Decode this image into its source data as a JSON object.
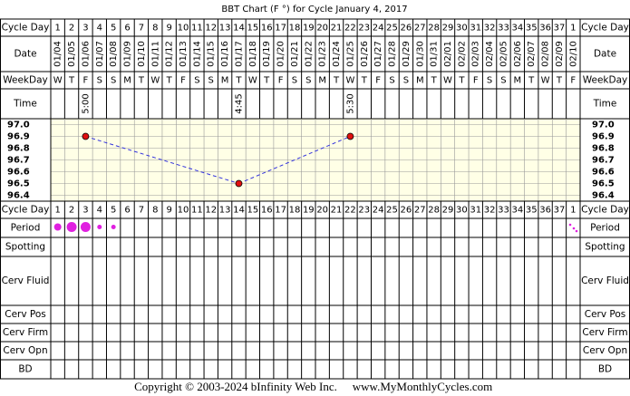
{
  "chart_data": {
    "type": "line",
    "title": "BBT Chart (F °) for Cycle January 4, 2017",
    "row_labels": {
      "cycle_day": "Cycle Day",
      "date": "Date",
      "weekday": "WeekDay",
      "time": "Time",
      "period": "Period",
      "spotting": "Spotting",
      "cerv_fluid": "Cerv Fluid",
      "cerv_pos": "Cerv Pos",
      "cerv_firm": "Cerv Firm",
      "cerv_opn": "Cerv Opn",
      "bd": "BD"
    },
    "cycle_days": [
      1,
      2,
      3,
      4,
      5,
      6,
      7,
      8,
      9,
      10,
      11,
      12,
      13,
      14,
      15,
      16,
      17,
      18,
      19,
      20,
      21,
      22,
      23,
      24,
      25,
      26,
      27,
      28,
      29,
      30,
      31,
      32,
      33,
      34,
      35,
      36,
      37,
      1
    ],
    "categories": [
      "01/04",
      "01/05",
      "01/06",
      "01/07",
      "01/08",
      "01/09",
      "01/10",
      "01/11",
      "01/12",
      "01/13",
      "01/14",
      "01/15",
      "01/16",
      "01/17",
      "01/18",
      "01/19",
      "01/20",
      "01/21",
      "01/22",
      "01/23",
      "01/24",
      "01/25",
      "01/26",
      "01/27",
      "01/28",
      "01/29",
      "01/30",
      "01/31",
      "02/01",
      "02/02",
      "02/03",
      "02/04",
      "02/05",
      "02/06",
      "02/07",
      "02/08",
      "02/09",
      "02/10"
    ],
    "weekdays": [
      "W",
      "T",
      "F",
      "S",
      "S",
      "M",
      "T",
      "W",
      "T",
      "F",
      "S",
      "S",
      "M",
      "T",
      "W",
      "T",
      "F",
      "S",
      "S",
      "M",
      "T",
      "W",
      "T",
      "F",
      "S",
      "S",
      "M",
      "T",
      "W",
      "T",
      "F",
      "S",
      "S",
      "M",
      "T",
      "W",
      "T",
      "F"
    ],
    "times": [
      null,
      null,
      "5:00",
      null,
      null,
      null,
      null,
      null,
      null,
      null,
      null,
      null,
      null,
      "4:45",
      null,
      null,
      null,
      null,
      null,
      null,
      null,
      "5:30",
      null,
      null,
      null,
      null,
      null,
      null,
      null,
      null,
      null,
      null,
      null,
      null,
      null,
      null,
      null,
      null
    ],
    "values": [
      null,
      null,
      96.9,
      null,
      null,
      null,
      null,
      null,
      null,
      null,
      null,
      null,
      null,
      96.5,
      null,
      null,
      null,
      null,
      null,
      null,
      null,
      96.9,
      null,
      null,
      null,
      null,
      null,
      null,
      null,
      null,
      null,
      null,
      null,
      null,
      null,
      null,
      null,
      null
    ],
    "color": "#e01010",
    "line_color": "#3333dd",
    "ylim": [
      96.35,
      97.05
    ],
    "yticks": [
      {
        "value": 97,
        "label": "97.0"
      },
      96.9,
      96.8,
      96.7,
      96.6,
      96.5,
      96.4
    ],
    "period": [
      2,
      3,
      3,
      1,
      1,
      null,
      null,
      null,
      null,
      null,
      null,
      null,
      null,
      null,
      null,
      null,
      null,
      null,
      null,
      null,
      null,
      null,
      null,
      null,
      null,
      null,
      null,
      null,
      null,
      null,
      null,
      null,
      null,
      null,
      null,
      null,
      null,
      null
    ],
    "period_color": "#e020e0",
    "copyright": "Copyright © 2003-2024 bInfinity Web Inc.",
    "website": "www.MyMonthlyCycles.com"
  }
}
